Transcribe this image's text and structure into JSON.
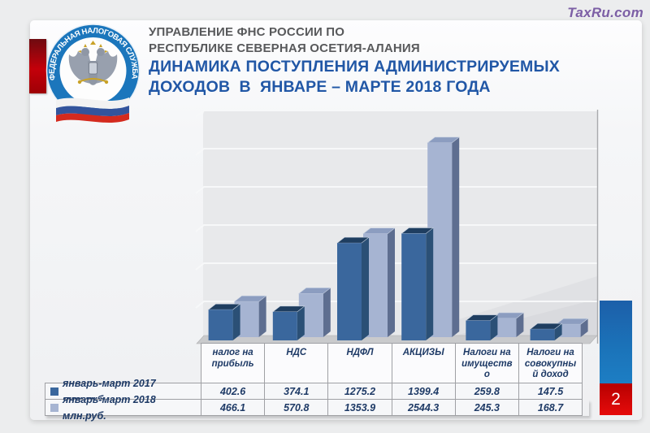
{
  "watermark": "TaxRu.com",
  "header": {
    "dept_line1": "УПРАВЛЕНИЕ ФНС РОССИИ ПО",
    "dept_line2": "РЕСПУБЛИКЕ СЕВЕРНАЯ ОСЕТИЯ-АЛАНИЯ",
    "title_line1": "ДИНАМИКА ПОСТУПЛЕНИЯ АДМИНИСТРИРУЕМЫХ",
    "title_line2": "ДОХОДОВ  В  ЯНВАРЕ – МАРТЕ 2018 ГОДА",
    "dept_color": "#58595B",
    "title_color": "#2157A6"
  },
  "logo": {
    "ring_text": "ФЕДЕРАЛЬНАЯ  НАЛОГОВАЯ  СЛУЖБА",
    "ring_color": "#1B76BC",
    "flag_colors": [
      "#F2F2F2",
      "#33549C",
      "#D42A1E"
    ]
  },
  "page_number": "2",
  "chart_data": {
    "type": "bar",
    "title": "",
    "xlabel": "",
    "ylabel": "",
    "categories": [
      "налог на прибыль",
      "НДС",
      "НДФЛ",
      "АКЦИЗЫ",
      "Налоги на имущество",
      "Налоги на совокупный доход"
    ],
    "categories_display": [
      "налог на\nприбыль",
      "НДС",
      "НДФЛ",
      "АКЦИЗЫ",
      "Налоги на\nимуществ\nо",
      "Налоги на\nсовокупны\nй доход"
    ],
    "series": [
      {
        "name": "январь-март 2017 млн.руб.",
        "color": "#3A679D",
        "color_top": "#1F3E60",
        "color_side": "#2B5076",
        "values": [
          402.6,
          374.1,
          1275.2,
          1399.4,
          259.8,
          147.5
        ]
      },
      {
        "name": "январь-март 2018 млн.руб.",
        "color": "#A6B4D2",
        "color_top": "#8C9DC0",
        "color_side": "#5E6E90",
        "values": [
          466.1,
          570.8,
          1353.9,
          2544.3,
          245.3,
          168.7
        ]
      }
    ],
    "ylim": [
      0,
      3000
    ],
    "gridline_step": 500,
    "grid": true,
    "legend_position": "bottom-table",
    "style": "3d-clustered-column",
    "wall_color": "#E8E9EB",
    "gridline_color": "#F7F8F9",
    "floor_color": "#C9CACC"
  }
}
